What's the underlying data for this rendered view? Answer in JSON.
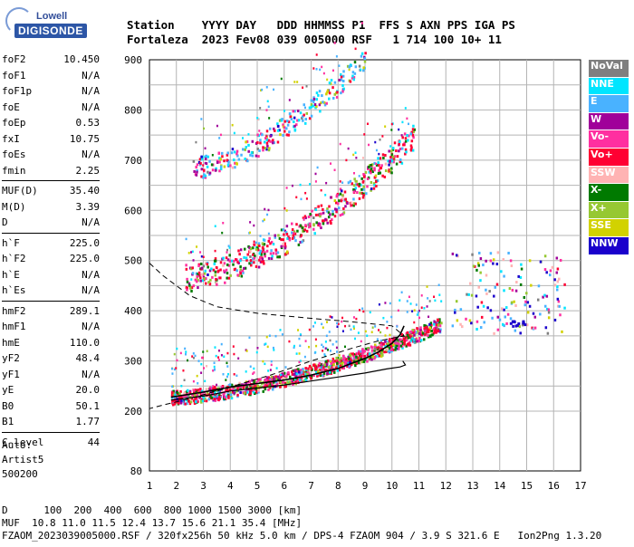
{
  "logo": {
    "top": "Lowell",
    "bottom": "DIGISONDE"
  },
  "header": {
    "line1": "Station    YYYY DAY   DDD HHMMSS P1  FFS S AXN PPS IGA PS",
    "line2": "Fortaleza  2023 Fev08 039 005000 RSF   1 714 100 10+ 11"
  },
  "params": [
    [
      {
        "k": "foF2",
        "v": "10.450"
      },
      {
        "k": "foF1",
        "v": "N/A"
      },
      {
        "k": "foF1p",
        "v": "N/A"
      },
      {
        "k": "foE",
        "v": "N/A"
      },
      {
        "k": "foEp",
        "v": "0.53"
      },
      {
        "k": "fxI",
        "v": "10.75"
      },
      {
        "k": "foEs",
        "v": "N/A"
      },
      {
        "k": "fmin",
        "v": "2.25"
      }
    ],
    [
      {
        "k": "MUF(D)",
        "v": "35.40"
      },
      {
        "k": "M(D)",
        "v": "3.39"
      },
      {
        "k": "D",
        "v": "N/A"
      }
    ],
    [
      {
        "k": "h`F",
        "v": "225.0"
      },
      {
        "k": "h`F2",
        "v": "225.0"
      },
      {
        "k": "h`E",
        "v": "N/A"
      },
      {
        "k": "h`Es",
        "v": "N/A"
      }
    ],
    [
      {
        "k": "hmF2",
        "v": "289.1"
      },
      {
        "k": "hmF1",
        "v": "N/A"
      },
      {
        "k": "hmE",
        "v": "110.0"
      },
      {
        "k": "yF2",
        "v": "48.4"
      },
      {
        "k": "yF1",
        "v": "N/A"
      },
      {
        "k": "yE",
        "v": "20.0"
      },
      {
        "k": "B0",
        "v": "50.1"
      },
      {
        "k": "B1",
        "v": "1.77"
      }
    ],
    [
      {
        "k": "C-level",
        "v": "44"
      }
    ]
  ],
  "auto": {
    "l1": "Auto:",
    "l2": "Artist5",
    "l3": "500200"
  },
  "legend": [
    {
      "label": "NoVal",
      "color": "#7f7f7f"
    },
    {
      "label": "NNE",
      "color": "#00e5ff"
    },
    {
      "label": "E",
      "color": "#49b2ff"
    },
    {
      "label": "W",
      "color": "#a0009a"
    },
    {
      "label": "Vo-",
      "color": "#ff2fa0"
    },
    {
      "label": "Vo+",
      "color": "#ff0033"
    },
    {
      "label": "SSW",
      "color": "#ffb3b3"
    },
    {
      "label": "X-",
      "color": "#007a00"
    },
    {
      "label": "X+",
      "color": "#96c832"
    },
    {
      "label": "SSE",
      "color": "#d2d200"
    },
    {
      "label": "NNW",
      "color": "#1a00cc"
    }
  ],
  "footer": {
    "line1": "D      100  200  400  600  800 1000 1500 3000 [km]",
    "line2": "MUF  10.8 11.0 11.5 12.4 13.7 15.6 21.1 35.4 [MHz]",
    "line3": "FZAOM_2023039005000.RSF / 320fx256h 50 kHz 5.0 km / DPS-4 FZAOM 904 / 3.9 S 321.6 E   Ion2Png 1.3.20"
  },
  "chart_data": {
    "type": "scatter",
    "xlim": [
      1,
      17
    ],
    "ylim": [
      80,
      900
    ],
    "x_ticks": [
      "1",
      "2",
      "3",
      "4",
      "5",
      "6",
      "7",
      "8",
      "9",
      "10",
      "11",
      "12",
      "13",
      "14",
      "15",
      "16",
      "17"
    ],
    "y_ticks": [
      "80",
      "200",
      "300",
      "400",
      "500",
      "600",
      "700",
      "800",
      "900"
    ],
    "y_scale": "nonlinear (reduced range below 200 km)",
    "grid": true,
    "series": [
      {
        "name": "O-trace profile",
        "points": [
          [
            1.8,
            228
          ],
          [
            3,
            238
          ],
          [
            4,
            248
          ],
          [
            5,
            255
          ],
          [
            6,
            262
          ],
          [
            7,
            272
          ],
          [
            8,
            285
          ],
          [
            8.5,
            295
          ],
          [
            9,
            305
          ],
          [
            9.5,
            318
          ],
          [
            10,
            335
          ],
          [
            10.3,
            352
          ],
          [
            10.45,
            370
          ]
        ]
      },
      {
        "name": "X-trace profile",
        "points": [
          [
            1.8,
            222
          ],
          [
            3,
            230
          ],
          [
            4,
            240
          ],
          [
            5,
            246
          ],
          [
            6,
            252
          ],
          [
            7,
            260
          ],
          [
            8,
            268
          ],
          [
            9,
            276
          ],
          [
            9.8,
            284
          ],
          [
            10.3,
            288
          ],
          [
            10.5,
            292
          ],
          [
            10.4,
            300
          ]
        ]
      },
      {
        "name": "Electron density profile",
        "points": [
          [
            1.0,
            495
          ],
          [
            1.5,
            470
          ],
          [
            2.5,
            430
          ],
          [
            3.5,
            408
          ],
          [
            5,
            395
          ],
          [
            7,
            385
          ],
          [
            8.5,
            378
          ],
          [
            10,
            370
          ],
          [
            10.45,
            350
          ],
          [
            9.5,
            340
          ],
          [
            8.5,
            325
          ],
          [
            7,
            300
          ],
          [
            5.5,
            272
          ],
          [
            3.8,
            245
          ],
          [
            2.5,
            225
          ],
          [
            1.5,
            212
          ],
          [
            1.0,
            205
          ]
        ]
      }
    ],
    "trace_bands": [
      {
        "hop": 1,
        "x": [
          1.8,
          11.8
        ],
        "y": [
          225,
          370
        ]
      },
      {
        "hop": 2,
        "x": [
          2.3,
          10.8
        ],
        "y": [
          460,
          740
        ]
      },
      {
        "hop": 3,
        "x": [
          2.6,
          9.0
        ],
        "y": [
          680,
          900
        ]
      }
    ],
    "oblique_cluster": {
      "x": [
        12.2,
        16.4
      ],
      "y": [
        355,
        520
      ]
    }
  }
}
